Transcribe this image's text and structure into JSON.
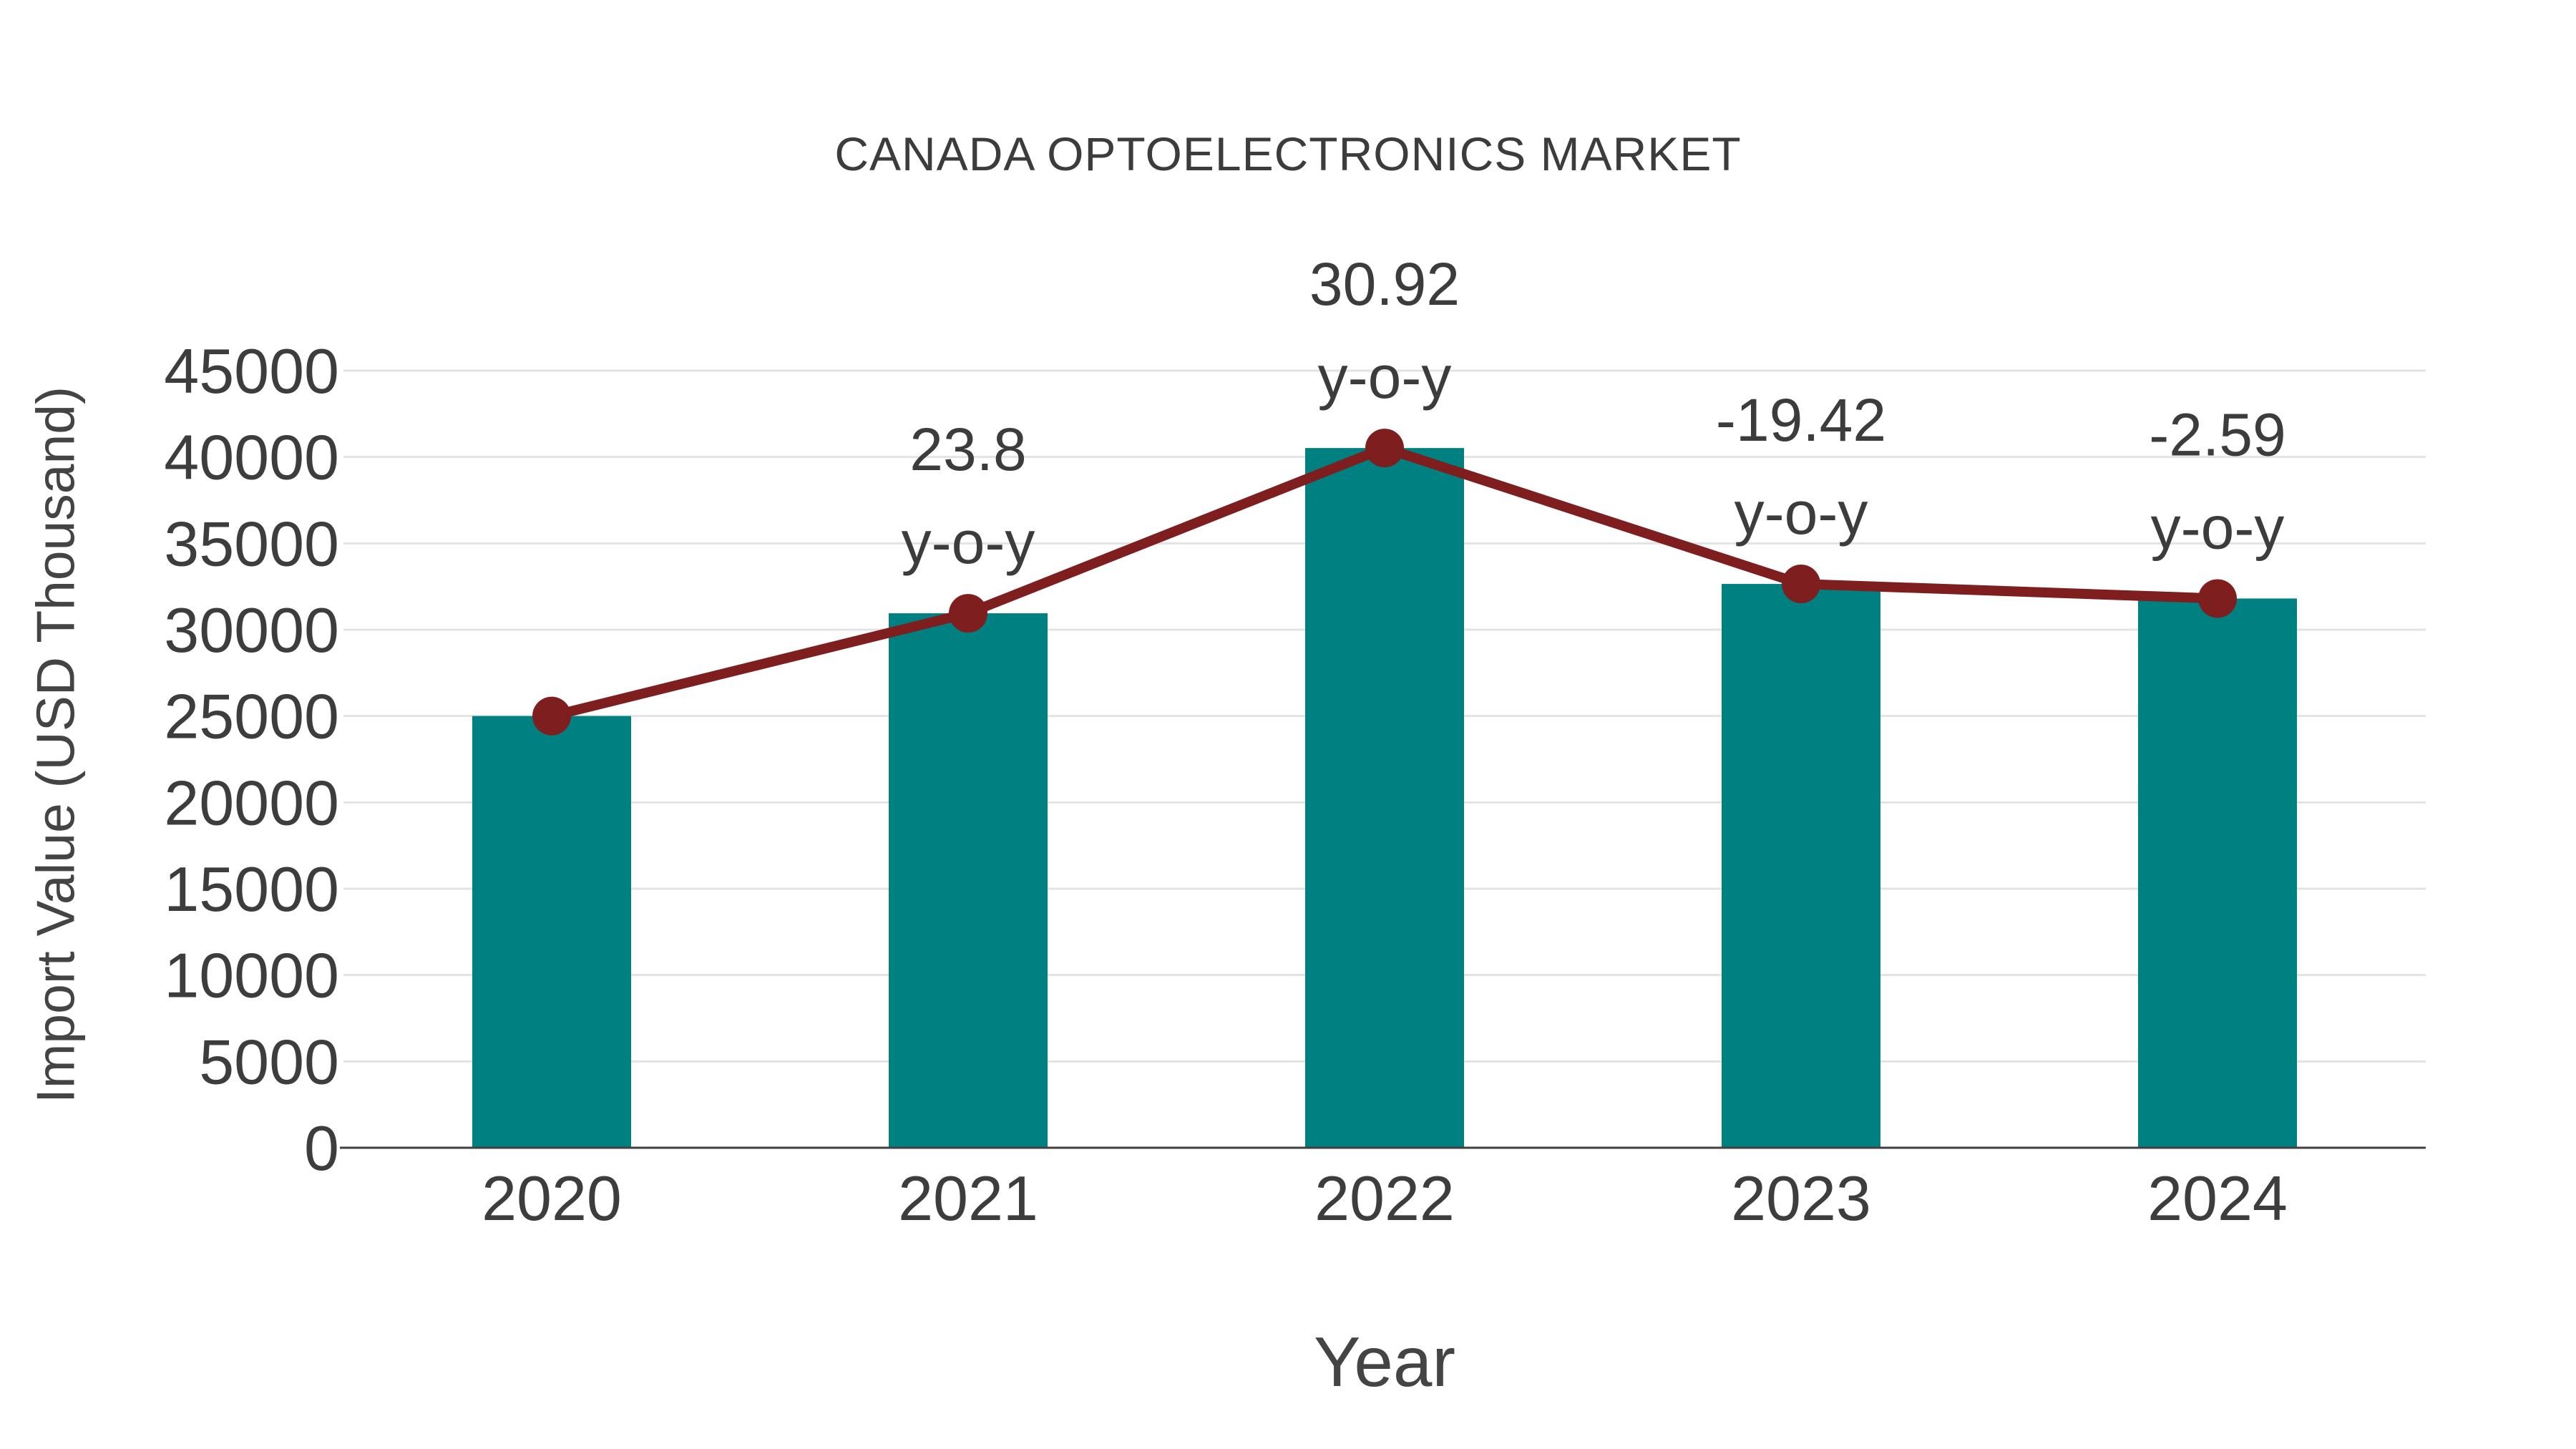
{
  "chart": {
    "title": "CANADA OPTOELECTRONICS MARKET",
    "x_axis_title": "Year",
    "y_axis_title": "Import Value (USD Thousand)"
  },
  "chart_data": {
    "type": "bar",
    "title": "CANADA OPTOELECTRONICS MARKET",
    "xlabel": "Year",
    "ylabel": "Import Value (USD Thousand)",
    "categories": [
      "2020",
      "2021",
      "2022",
      "2023",
      "2024"
    ],
    "series": [
      {
        "name": "Import Value (USD Thousand)",
        "type": "bar",
        "values": [
          25000,
          30950,
          40520,
          32650,
          31805
        ]
      },
      {
        "name": "y-o-y trend line",
        "type": "line",
        "values": [
          25000,
          30950,
          40520,
          32650,
          31805
        ]
      }
    ],
    "yoy_percent": [
      null,
      23.8,
      30.92,
      -19.42,
      -2.59
    ],
    "annotations": [
      {
        "category": "2021",
        "value_label": "23.8",
        "suffix_label": "y-o-y"
      },
      {
        "category": "2022",
        "value_label": "30.92",
        "suffix_label": "y-o-y"
      },
      {
        "category": "2023",
        "value_label": "-19.42",
        "suffix_label": "y-o-y"
      },
      {
        "category": "2024",
        "value_label": "-2.59",
        "suffix_label": "y-o-y"
      }
    ],
    "ylim": [
      0,
      45000
    ],
    "ytick_step": 5000,
    "yticks": [
      0,
      5000,
      10000,
      15000,
      20000,
      25000,
      30000,
      35000,
      40000,
      45000
    ],
    "grid": "horizontal",
    "legend_position": "none",
    "colors": {
      "bar": "#008080",
      "line": "#7F1E1E",
      "marker": "#7F1E1E",
      "gridline": "#E3E3E3",
      "axis_line": "#404040",
      "tick_text": "#3D3D3D",
      "annotation_text": "#3C3C3C",
      "title_text": "#3C3C3C",
      "axis_title_text": "#444444"
    }
  }
}
